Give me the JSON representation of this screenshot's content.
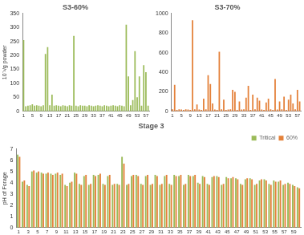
{
  "chart_data": [
    {
      "type": "bar",
      "title": "S3-60%",
      "y_label": "10⁻³/g powder",
      "categories": [
        "1",
        null,
        null,
        null,
        "5",
        null,
        null,
        null,
        "9",
        null,
        null,
        null,
        "13",
        null,
        null,
        null,
        "17",
        null,
        null,
        null,
        "21",
        null,
        null,
        null,
        "25",
        null,
        null,
        null,
        "29",
        null,
        null,
        null,
        "33",
        null,
        null,
        null,
        "37",
        null,
        null,
        null,
        "41",
        null,
        null,
        null,
        "45",
        null,
        null,
        null,
        "49",
        null,
        null,
        null,
        "53",
        null,
        null,
        null,
        "57",
        null
      ],
      "series": [
        {
          "name": "S3-60%",
          "color": "#9bbb59",
          "values": [
            255,
            18,
            20,
            22,
            25,
            20,
            22,
            20,
            18,
            22,
            205,
            230,
            22,
            60,
            20,
            22,
            20,
            18,
            22,
            20,
            18,
            22,
            20,
            270,
            20,
            18,
            22,
            20,
            20,
            18,
            22,
            20,
            18,
            20,
            22,
            20,
            18,
            22,
            20,
            18,
            20,
            22,
            20,
            18,
            22,
            20,
            18,
            310,
            125,
            22,
            40,
            215,
            50,
            125,
            20,
            165,
            140,
            20
          ]
        }
      ],
      "ylim": [
        0,
        350
      ],
      "yticks": [
        0,
        50,
        100,
        150,
        200,
        250,
        300,
        350
      ],
      "grid": false
    },
    {
      "type": "bar",
      "title": "S3-70%",
      "categories": [
        "1",
        null,
        null,
        null,
        "5",
        null,
        null,
        null,
        "9",
        null,
        null,
        null,
        "13",
        null,
        null,
        null,
        "17",
        null,
        null,
        null,
        "21",
        null,
        null,
        null,
        "25",
        null,
        null,
        null,
        "29",
        null,
        null,
        null,
        "33",
        null,
        null,
        null,
        "37",
        null,
        null,
        null,
        "41",
        null,
        null,
        null,
        "45",
        null,
        null,
        null,
        "49",
        null,
        null,
        null,
        "53",
        null,
        null,
        null,
        "57",
        null
      ],
      "series": [
        {
          "name": "S3-70%",
          "color": "#e4813a",
          "values": [
            20,
            270,
            15,
            20,
            18,
            15,
            20,
            18,
            15,
            930,
            20,
            70,
            18,
            15,
            130,
            20,
            370,
            280,
            80,
            18,
            15,
            610,
            20,
            120,
            15,
            18,
            20,
            220,
            200,
            15,
            100,
            18,
            20,
            140,
            260,
            15,
            170,
            20,
            140,
            110,
            18,
            15,
            90,
            130,
            20,
            15,
            330,
            18,
            100,
            20,
            150,
            15,
            120,
            170,
            80,
            20,
            220,
            100
          ]
        }
      ],
      "ylim": [
        0,
        1000
      ],
      "yticks": [
        0,
        200,
        400,
        600,
        800,
        1000
      ],
      "grid": false
    },
    {
      "type": "bar",
      "title": "Stage 3",
      "y_label": "pH of Forage",
      "legend": "top-right",
      "categories": [
        "1",
        null,
        "3",
        null,
        "5",
        null,
        "7",
        null,
        "9",
        null,
        "11",
        null,
        "13",
        null,
        "15",
        null,
        "17",
        null,
        "19",
        null,
        "21",
        null,
        "23",
        null,
        "25",
        null,
        "27",
        null,
        "29",
        null,
        "31",
        null,
        "33",
        null,
        "35",
        null,
        "37",
        null,
        "39",
        null,
        "41",
        null,
        "43",
        null,
        "45",
        null,
        "47",
        null,
        "49",
        null,
        "51",
        null,
        "53",
        null,
        "55",
        null,
        "57",
        null,
        "59",
        null
      ],
      "series": [
        {
          "name": "Tritical",
          "color": "#9bbb59",
          "values": [
            6.5,
            4.1,
            3.8,
            5.0,
            4.9,
            4.9,
            4.8,
            4.8,
            4.8,
            4.7,
            3.8,
            4.0,
            4.9,
            3.9,
            4.6,
            3.8,
            4.7,
            4.7,
            3.9,
            4.6,
            3.8,
            3.9,
            6.3,
            3.8,
            4.6,
            4.7,
            3.9,
            4.6,
            3.8,
            4.7,
            3.8,
            4.6,
            3.9,
            4.7,
            4.6,
            3.8,
            4.7,
            4.6,
            4.0,
            4.6,
            3.9,
            4.5,
            4.6,
            3.8,
            4.5,
            4.4,
            4.4,
            3.9,
            4.3,
            4.4,
            3.8,
            4.2,
            4.3,
            3.9,
            4.2,
            4.1,
            3.8,
            4.0,
            3.8,
            3.6
          ]
        },
        {
          "name": "60%",
          "color": "#e4813a",
          "values": [
            6.3,
            4.2,
            3.7,
            5.1,
            5.0,
            4.8,
            4.9,
            4.7,
            4.9,
            4.8,
            3.7,
            4.1,
            4.8,
            3.8,
            4.7,
            3.9,
            4.6,
            4.8,
            3.8,
            4.7,
            3.9,
            3.8,
            5.7,
            3.9,
            4.7,
            4.6,
            3.8,
            4.7,
            3.9,
            4.6,
            3.9,
            4.7,
            3.8,
            4.6,
            4.7,
            3.9,
            4.6,
            4.7,
            3.9,
            4.5,
            3.8,
            4.6,
            4.5,
            3.9,
            4.4,
            4.5,
            4.3,
            3.8,
            4.4,
            4.3,
            3.9,
            4.3,
            4.2,
            3.8,
            4.1,
            4.2,
            3.9,
            3.9,
            3.7,
            3.5
          ]
        }
      ],
      "ylim": [
        0,
        7
      ],
      "yticks": [
        0,
        1,
        2,
        3,
        4,
        5,
        6,
        7
      ],
      "grid": false
    }
  ]
}
